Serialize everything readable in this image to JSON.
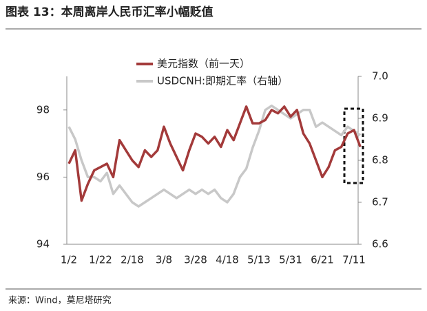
{
  "title": "图表 13：本周离岸人民币汇率小幅贬值",
  "source": "来源：Wind，莫尼塔研究",
  "chart_data": {
    "type": "line",
    "categories": [
      "1/2",
      null,
      null,
      null,
      null,
      "1/22",
      null,
      null,
      null,
      null,
      "2/18",
      null,
      null,
      null,
      null,
      "3/8",
      null,
      null,
      null,
      null,
      "3/28",
      null,
      null,
      null,
      null,
      "4/18",
      null,
      null,
      null,
      null,
      "5/13",
      null,
      null,
      null,
      null,
      "5/31",
      null,
      null,
      null,
      null,
      "6/21",
      null,
      null,
      null,
      null,
      "7/11",
      null
    ],
    "series": [
      {
        "name": "美元指数（前一天）",
        "color": "#a33a3a",
        "values": [
          96.4,
          96.8,
          95.3,
          95.8,
          96.2,
          96.3,
          96.4,
          96.0,
          97.1,
          96.8,
          96.5,
          96.3,
          96.8,
          96.6,
          96.8,
          97.5,
          97.0,
          96.6,
          96.2,
          96.8,
          97.3,
          97.2,
          97.0,
          97.2,
          96.9,
          97.4,
          97.1,
          97.6,
          98.1,
          97.6,
          97.6,
          97.7,
          98.0,
          97.9,
          98.1,
          97.8,
          98.0,
          97.3,
          97.0,
          96.5,
          96.0,
          96.3,
          96.8,
          96.9,
          97.3,
          97.4,
          96.9
        ]
      },
      {
        "name": "USDCNH:即期汇率（右轴）",
        "color": "#c8c8c8",
        "axis": "y2",
        "values": [
          6.88,
          6.85,
          6.8,
          6.76,
          6.76,
          6.75,
          6.77,
          6.72,
          6.74,
          6.72,
          6.7,
          6.69,
          6.7,
          6.71,
          6.72,
          6.73,
          6.72,
          6.71,
          6.72,
          6.73,
          6.72,
          6.73,
          6.72,
          6.73,
          6.71,
          6.7,
          6.72,
          6.76,
          6.78,
          6.83,
          6.87,
          6.92,
          6.93,
          6.92,
          6.91,
          6.9,
          6.91,
          6.92,
          6.92,
          6.88,
          6.89,
          6.88,
          6.87,
          6.86,
          6.88,
          6.87,
          6.86
        ]
      }
    ],
    "ylim": [
      94,
      99
    ],
    "yticks": [
      94,
      96,
      98
    ],
    "y2lim": [
      6.6,
      7.0
    ],
    "y2ticks": [
      6.6,
      6.7,
      6.8,
      6.9,
      {
        "value": 7.0,
        "label": "7.0"
      }
    ],
    "grid": false
  }
}
